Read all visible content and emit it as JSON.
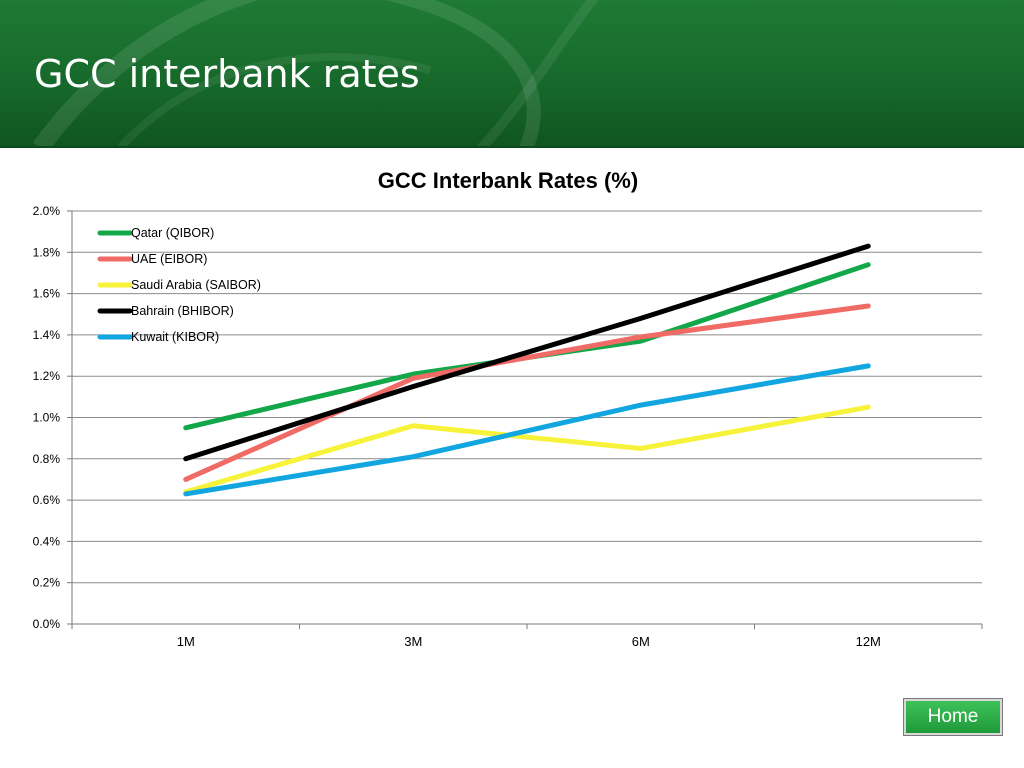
{
  "slide": {
    "title": "GCC interbank rates",
    "home_label": "Home",
    "slide_number": "",
    "colors": {
      "header": "#17692b",
      "home_button": "#2db04a"
    }
  },
  "chart_data": {
    "type": "line",
    "title": "GCC Interbank Rates (%)",
    "xlabel": "",
    "ylabel": "",
    "categories": [
      "1M",
      "3M",
      "6M",
      "12M"
    ],
    "ylim": [
      0,
      2.0
    ],
    "yticks": [
      "0.0%",
      "0.2%",
      "0.4%",
      "0.6%",
      "0.8%",
      "1.0%",
      "1.2%",
      "1.4%",
      "1.6%",
      "1.8%",
      "2.0%"
    ],
    "grid": true,
    "legend_position": "top-left",
    "series": [
      {
        "name": "Qatar (QIBOR)",
        "color": "#12a84a",
        "values": [
          0.95,
          1.21,
          1.37,
          1.74
        ]
      },
      {
        "name": "UAE (EIBOR)",
        "color": "#f06a66",
        "values": [
          0.7,
          1.19,
          1.39,
          1.54
        ]
      },
      {
        "name": "Saudi Arabia (SAIBOR)",
        "color": "#f7f23a",
        "values": [
          0.64,
          0.96,
          0.85,
          1.05
        ]
      },
      {
        "name": "Bahrain (BHIBOR)",
        "color": "#000000",
        "values": [
          0.8,
          1.15,
          1.48,
          1.83
        ]
      },
      {
        "name": "Kuwait (KIBOR)",
        "color": "#12a6e0",
        "values": [
          0.63,
          0.81,
          1.06,
          1.25
        ]
      }
    ]
  }
}
